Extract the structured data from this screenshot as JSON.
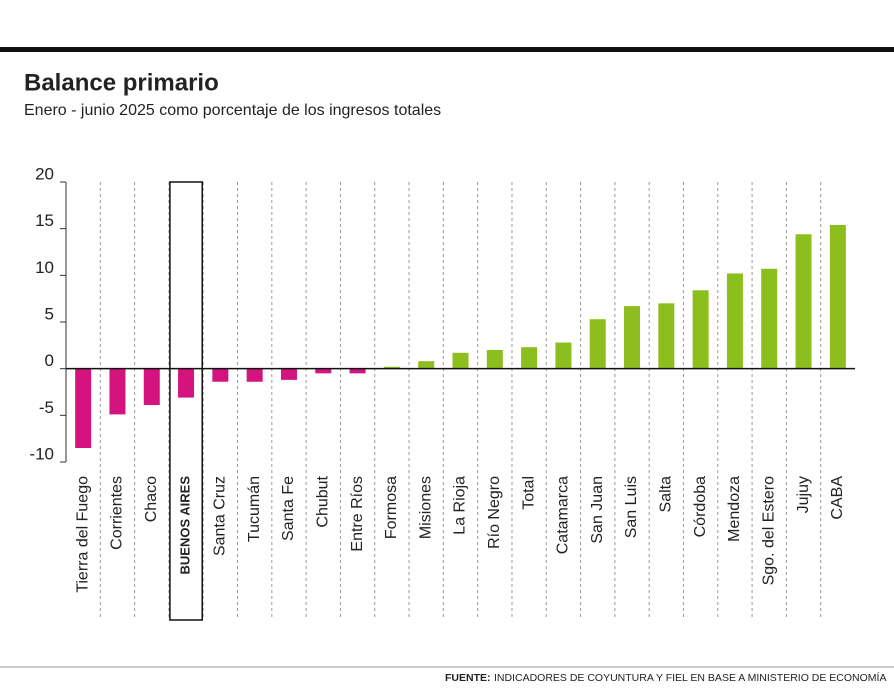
{
  "chart_data": {
    "type": "bar",
    "title": "Balance primario",
    "subtitle": "Enero - junio 2025 como porcentaje de los ingresos totales",
    "categories": [
      "Tierra del Fuego",
      "Corrientes",
      "Chaco",
      "BUENOS AIRES",
      "Santa Cruz",
      "Tucumán",
      "Santa Fe",
      "Chubut",
      "Entre Ríos",
      "Formosa",
      "Misiones",
      "La Rioja",
      "Río Negro",
      "Total",
      "Catamarca",
      "San Juan",
      "San Luis",
      "Salta",
      "Córdoba",
      "Mendoza",
      "Sgo. del Estero",
      "Jujuy",
      "CABA"
    ],
    "values": [
      -8.5,
      -4.9,
      -3.9,
      -3.1,
      -1.4,
      -1.4,
      -1.2,
      -0.5,
      -0.5,
      0.2,
      0.8,
      1.7,
      2.0,
      2.3,
      2.8,
      5.3,
      6.7,
      7.0,
      8.4,
      10.2,
      10.7,
      14.4,
      15.4
    ],
    "negative_color": "#d4137f",
    "positive_color": "#8cbe1e",
    "highlight_index": 3,
    "ylim": [
      -10,
      20
    ],
    "yticks": [
      -10,
      -5,
      0,
      5,
      10,
      15,
      20
    ],
    "grid": true,
    "source_label": "FUENTE:",
    "source": "INDICADORES DE COYUNTURA Y FIEL EN BASE A MINISTERIO DE ECONOMÍA"
  }
}
